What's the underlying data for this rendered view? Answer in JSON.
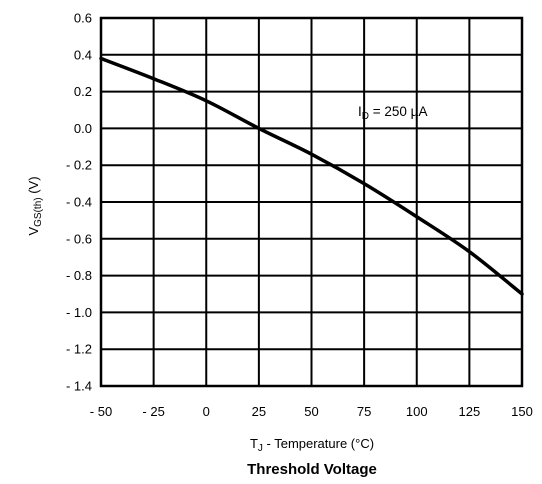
{
  "chart_data": {
    "type": "line",
    "title": "Threshold Voltage",
    "xlabel": {
      "main": "T",
      "sub": "J",
      "rest": " - Temperature (°C)"
    },
    "ylabel": {
      "main": "V",
      "sub": "GS(th)",
      "rest": "  (V)"
    },
    "xlim": [
      -50,
      150
    ],
    "ylim": [
      -1.4,
      0.6
    ],
    "grid": true,
    "x_ticks": [
      -50,
      -25,
      0,
      25,
      50,
      75,
      100,
      125,
      150
    ],
    "x_tick_labels": [
      "- 50",
      "- 25",
      "0",
      "25",
      "50",
      "75",
      "100",
      "125",
      "150"
    ],
    "y_ticks": [
      0.6,
      0.4,
      0.2,
      0.0,
      -0.2,
      -0.4,
      -0.6,
      -0.8,
      -1.0,
      -1.2,
      -1.4
    ],
    "y_tick_labels": [
      "0.6",
      "0.4",
      "0.2",
      "0.0",
      "- 0.2",
      "- 0.4",
      "- 0.6",
      "- 0.8",
      "- 1.0",
      "- 1.2",
      "- 1.4"
    ],
    "annotation": {
      "main": "I",
      "sub": "D",
      "rest": " = 250 µA"
    },
    "series": [
      {
        "x": [
          -50,
          -25,
          0,
          25,
          50,
          75,
          100,
          125,
          150
        ],
        "y": [
          0.38,
          0.27,
          0.15,
          0.0,
          -0.14,
          -0.3,
          -0.48,
          -0.67,
          -0.9
        ]
      }
    ]
  }
}
